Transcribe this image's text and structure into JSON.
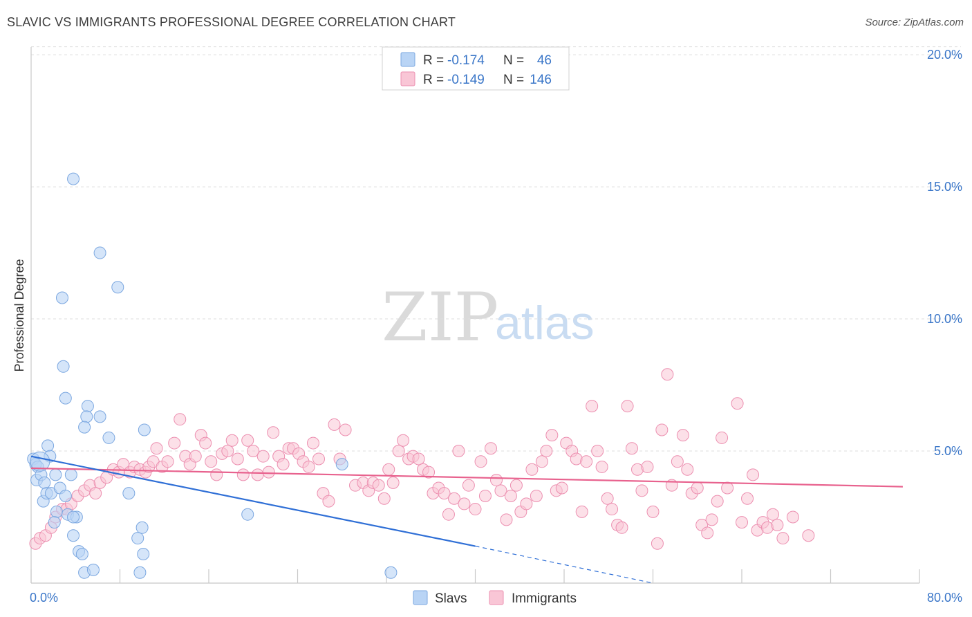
{
  "header": {
    "title": "SLAVIC VS IMMIGRANTS PROFESSIONAL DEGREE CORRELATION CHART",
    "source": "Source: ZipAtlas.com"
  },
  "watermark": {
    "zip": "ZIP",
    "atlas": "atlas"
  },
  "legend": {
    "rows": [
      {
        "r_label": "R =",
        "r_value": "-0.174",
        "n_label": "N =",
        "n_value": "46",
        "color": "#b9d4f5"
      },
      {
        "r_label": "R =",
        "r_value": "-0.149",
        "n_label": "N =",
        "n_value": "146",
        "color": "#f9c6d6"
      }
    ],
    "bottom": [
      "Slavs",
      "Immigrants"
    ]
  },
  "colors": {
    "slavs_fill": "#b9d4f5",
    "slavs_stroke": "#7ba7e0",
    "slavs_line": "#2f6fd6",
    "imm_fill": "#f9c6d6",
    "imm_stroke": "#ec8fb0",
    "imm_line": "#e8628e",
    "tick": "#3a76c8",
    "grid": "#dddddd"
  },
  "chart_data": {
    "type": "scatter",
    "title": "SLAVIC VS IMMIGRANTS PROFESSIONAL DEGREE CORRELATION CHART",
    "xlabel": "",
    "ylabel": "Professional Degree",
    "xlim": [
      0,
      80
    ],
    "ylim": [
      0,
      20.5
    ],
    "x_tick_labels": [
      "0.0%",
      "80.0%"
    ],
    "y_ticks": [
      5,
      10,
      15,
      20
    ],
    "y_tick_labels": [
      "5.0%",
      "10.0%",
      "15.0%",
      "20.0%"
    ],
    "grid": true,
    "legend_position": "top-center",
    "series": [
      {
        "name": "Slavs",
        "r": -0.174,
        "n": 46,
        "points": [
          [
            0.2,
            4.7
          ],
          [
            0.4,
            4.5
          ],
          [
            0.6,
            4.4
          ],
          [
            0.5,
            3.9
          ],
          [
            0.9,
            4.1
          ],
          [
            1.2,
            3.8
          ],
          [
            1.5,
            5.2
          ],
          [
            1.7,
            4.8
          ],
          [
            1.1,
            3.1
          ],
          [
            1.4,
            3.4
          ],
          [
            1.8,
            3.4
          ],
          [
            2.2,
            4.1
          ],
          [
            2.6,
            3.6
          ],
          [
            3.1,
            3.3
          ],
          [
            3.6,
            4.1
          ],
          [
            2.3,
            2.7
          ],
          [
            3.3,
            2.6
          ],
          [
            4.1,
            2.5
          ],
          [
            3.8,
            2.5
          ],
          [
            2.1,
            2.3
          ],
          [
            3.8,
            1.8
          ],
          [
            4.3,
            1.2
          ],
          [
            4.6,
            1.1
          ],
          [
            4.8,
            0.4
          ],
          [
            5.6,
            0.5
          ],
          [
            2.8,
            10.8
          ],
          [
            2.9,
            8.2
          ],
          [
            3.1,
            7.0
          ],
          [
            5.1,
            6.7
          ],
          [
            5.0,
            6.3
          ],
          [
            6.2,
            6.3
          ],
          [
            4.8,
            5.9
          ],
          [
            7.0,
            5.5
          ],
          [
            10.2,
            5.8
          ],
          [
            8.8,
            3.4
          ],
          [
            10.0,
            2.1
          ],
          [
            9.6,
            1.7
          ],
          [
            10.1,
            1.1
          ],
          [
            9.8,
            0.4
          ],
          [
            19.5,
            2.6
          ],
          [
            28.0,
            4.5
          ],
          [
            32.4,
            0.4
          ],
          [
            3.8,
            15.3
          ],
          [
            6.2,
            12.5
          ],
          [
            7.8,
            11.2
          ],
          [
            0.8,
            4.6
          ]
        ],
        "trend": {
          "x1": 0,
          "y1": 4.8,
          "x2": 40,
          "y2": 1.4,
          "dashed_to_x": 56,
          "dashed_to_y": 0.0
        }
      },
      {
        "name": "Immigrants",
        "r": -0.149,
        "n": 146,
        "points": [
          [
            0.4,
            1.5
          ],
          [
            0.8,
            1.7
          ],
          [
            1.3,
            1.8
          ],
          [
            1.8,
            2.1
          ],
          [
            2.2,
            2.5
          ],
          [
            2.8,
            2.8
          ],
          [
            3.2,
            2.8
          ],
          [
            3.6,
            3.0
          ],
          [
            4.2,
            3.3
          ],
          [
            4.8,
            3.5
          ],
          [
            5.3,
            3.7
          ],
          [
            5.8,
            3.4
          ],
          [
            6.2,
            3.8
          ],
          [
            6.8,
            4.0
          ],
          [
            7.4,
            4.3
          ],
          [
            7.9,
            4.2
          ],
          [
            8.3,
            4.5
          ],
          [
            8.9,
            4.2
          ],
          [
            9.3,
            4.4
          ],
          [
            9.8,
            4.3
          ],
          [
            10.3,
            4.2
          ],
          [
            10.6,
            4.4
          ],
          [
            11.0,
            4.6
          ],
          [
            11.3,
            5.1
          ],
          [
            11.8,
            4.4
          ],
          [
            12.3,
            4.6
          ],
          [
            12.9,
            5.3
          ],
          [
            13.4,
            6.2
          ],
          [
            13.9,
            4.8
          ],
          [
            14.3,
            4.5
          ],
          [
            14.8,
            4.8
          ],
          [
            15.3,
            5.6
          ],
          [
            15.7,
            5.3
          ],
          [
            16.2,
            4.6
          ],
          [
            16.7,
            4.1
          ],
          [
            17.2,
            4.9
          ],
          [
            17.7,
            5.0
          ],
          [
            18.1,
            5.4
          ],
          [
            18.6,
            4.7
          ],
          [
            19.1,
            4.1
          ],
          [
            19.5,
            5.4
          ],
          [
            20.0,
            5.0
          ],
          [
            20.4,
            4.1
          ],
          [
            20.9,
            4.8
          ],
          [
            21.4,
            4.2
          ],
          [
            21.8,
            5.7
          ],
          [
            22.3,
            4.8
          ],
          [
            22.7,
            4.5
          ],
          [
            23.2,
            5.1
          ],
          [
            23.6,
            5.1
          ],
          [
            24.1,
            4.9
          ],
          [
            24.5,
            4.6
          ],
          [
            25.0,
            4.4
          ],
          [
            25.4,
            5.3
          ],
          [
            25.9,
            4.7
          ],
          [
            26.3,
            3.4
          ],
          [
            26.8,
            3.1
          ],
          [
            27.3,
            6.0
          ],
          [
            27.8,
            4.7
          ],
          [
            28.3,
            5.8
          ],
          [
            29.2,
            3.7
          ],
          [
            29.9,
            3.8
          ],
          [
            30.4,
            3.5
          ],
          [
            30.8,
            3.8
          ],
          [
            31.3,
            3.7
          ],
          [
            31.8,
            3.2
          ],
          [
            32.2,
            4.3
          ],
          [
            32.6,
            3.8
          ],
          [
            33.1,
            5.0
          ],
          [
            33.5,
            5.4
          ],
          [
            34.0,
            4.7
          ],
          [
            34.4,
            4.8
          ],
          [
            34.9,
            4.7
          ],
          [
            35.3,
            4.3
          ],
          [
            35.8,
            4.2
          ],
          [
            36.2,
            3.4
          ],
          [
            36.7,
            3.6
          ],
          [
            37.2,
            3.4
          ],
          [
            37.6,
            2.6
          ],
          [
            38.1,
            3.2
          ],
          [
            38.5,
            5.0
          ],
          [
            39.0,
            3.0
          ],
          [
            39.4,
            3.7
          ],
          [
            40.0,
            2.8
          ],
          [
            40.5,
            4.6
          ],
          [
            40.9,
            3.3
          ],
          [
            41.4,
            5.1
          ],
          [
            41.9,
            3.9
          ],
          [
            42.3,
            3.5
          ],
          [
            42.8,
            2.4
          ],
          [
            43.2,
            3.3
          ],
          [
            43.7,
            3.7
          ],
          [
            44.1,
            2.7
          ],
          [
            44.6,
            3.0
          ],
          [
            45.1,
            4.3
          ],
          [
            45.5,
            3.3
          ],
          [
            46.0,
            4.6
          ],
          [
            46.4,
            5.0
          ],
          [
            46.9,
            5.6
          ],
          [
            47.3,
            3.5
          ],
          [
            47.8,
            3.6
          ],
          [
            48.2,
            5.3
          ],
          [
            48.7,
            5.0
          ],
          [
            49.1,
            4.7
          ],
          [
            49.6,
            2.7
          ],
          [
            50.0,
            4.6
          ],
          [
            50.5,
            6.7
          ],
          [
            51.0,
            5.0
          ],
          [
            51.4,
            4.4
          ],
          [
            51.9,
            3.2
          ],
          [
            52.3,
            2.8
          ],
          [
            52.8,
            2.2
          ],
          [
            53.2,
            2.1
          ],
          [
            53.7,
            6.7
          ],
          [
            54.1,
            5.1
          ],
          [
            54.6,
            4.3
          ],
          [
            55.0,
            3.5
          ],
          [
            55.5,
            4.4
          ],
          [
            56.0,
            2.7
          ],
          [
            56.4,
            1.5
          ],
          [
            56.8,
            5.8
          ],
          [
            57.3,
            7.9
          ],
          [
            57.7,
            3.7
          ],
          [
            58.2,
            4.6
          ],
          [
            58.7,
            5.6
          ],
          [
            59.1,
            4.3
          ],
          [
            59.5,
            3.4
          ],
          [
            60.0,
            3.6
          ],
          [
            60.4,
            2.2
          ],
          [
            60.9,
            1.9
          ],
          [
            61.3,
            2.4
          ],
          [
            61.8,
            3.1
          ],
          [
            62.2,
            5.5
          ],
          [
            62.7,
            3.6
          ],
          [
            63.6,
            6.8
          ],
          [
            64.0,
            2.3
          ],
          [
            64.5,
            3.2
          ],
          [
            65.0,
            4.1
          ],
          [
            65.4,
            2.0
          ],
          [
            65.9,
            2.3
          ],
          [
            66.3,
            2.1
          ],
          [
            66.8,
            2.6
          ],
          [
            67.2,
            2.2
          ],
          [
            67.7,
            1.7
          ],
          [
            68.6,
            2.5
          ],
          [
            70.0,
            1.8
          ]
        ],
        "trend": {
          "x1": 0,
          "y1": 4.35,
          "x2": 78.5,
          "y2": 3.65
        }
      }
    ]
  }
}
